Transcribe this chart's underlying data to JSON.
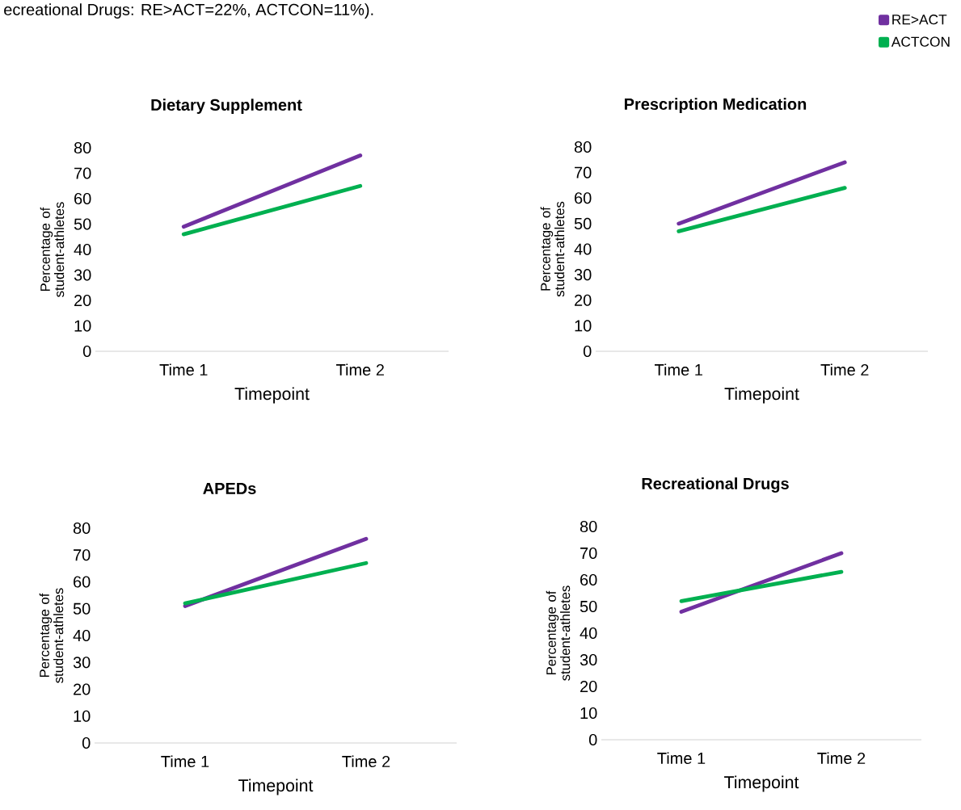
{
  "chart_data": [
    {
      "type": "line",
      "title": "Dietary Supplement",
      "xlabel": "Timepoint",
      "ylabel": "Percentage of student-athletes",
      "categories": [
        "Time 1",
        "Time 2"
      ],
      "ylim": [
        0,
        80
      ],
      "yticks": [
        0,
        10,
        20,
        30,
        40,
        50,
        60,
        70,
        80
      ],
      "grid": false,
      "marker": "none",
      "annotations": [
        "ecreational Drugs: RE>ACT=22%, ACTCON=11%)."
      ],
      "series": [
        {
          "color": "#7030a0",
          "values": [
            49,
            77
          ]
        },
        {
          "color": "#00b050",
          "values": [
            46,
            65
          ]
        }
      ]
    },
    {
      "type": "line",
      "title": "Prescription Medication",
      "xlabel": "Timepoint",
      "ylabel": "Percentage of student-athletes",
      "categories": [
        "Time 1",
        "Time 2"
      ],
      "ylim": [
        0,
        80
      ],
      "yticks": [
        0,
        10,
        20,
        30,
        40,
        50,
        60,
        70,
        80
      ],
      "grid": false,
      "marker": "none",
      "legend": "top right",
      "series": [
        {
          "name": "RE>ACT",
          "color": "#7030a0",
          "values": [
            50,
            74
          ]
        },
        {
          "name": "ACTCON",
          "color": "#00b050",
          "values": [
            47,
            64
          ]
        }
      ]
    },
    {
      "type": "line",
      "title": "APEDs",
      "xlabel": "Timepoint",
      "ylabel": "Percentage of student-athletes",
      "categories": [
        "Time 1",
        "Time 2"
      ],
      "ylim": [
        0,
        80
      ],
      "yticks": [
        0,
        10,
        20,
        30,
        40,
        50,
        60,
        70,
        80
      ],
      "grid": false,
      "marker": "none",
      "series": [
        {
          "color": "#7030a0",
          "values": [
            51,
            76
          ]
        },
        {
          "color": "#00b050",
          "values": [
            52,
            67
          ]
        }
      ]
    },
    {
      "type": "line",
      "title": "Recreational Drugs",
      "xlabel": "Timepoint",
      "ylabel": "Percentage of student-athletes",
      "categories": [
        "Time 1",
        "Time 2"
      ],
      "ylim": [
        0,
        80
      ],
      "yticks": [
        0,
        10,
        20,
        30,
        40,
        50,
        60,
        70,
        80
      ],
      "grid": false,
      "marker": "none",
      "series": [
        {
          "color": "#7030a0",
          "values": [
            48,
            70
          ]
        },
        {
          "color": "#00b050",
          "values": [
            52,
            63
          ]
        }
      ]
    }
  ]
}
